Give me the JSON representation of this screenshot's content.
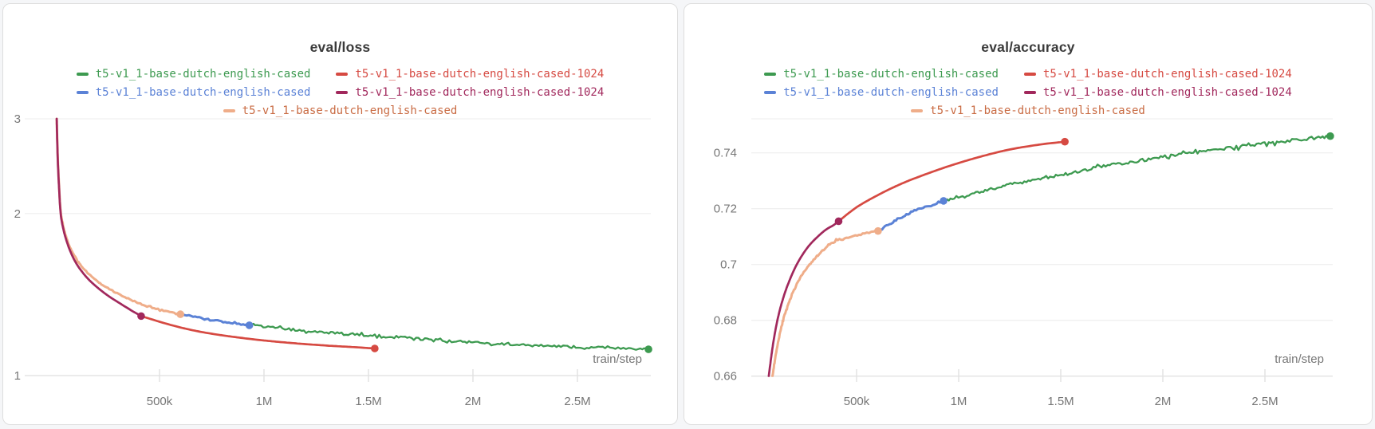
{
  "chart_data": [
    {
      "type": "line",
      "title": "eval/loss",
      "xlabel": "train/step",
      "y_scale": "log",
      "x_ticks": [
        {
          "v": 500000,
          "label": "500k"
        },
        {
          "v": 1000000,
          "label": "1M"
        },
        {
          "v": 1500000,
          "label": "1.5M"
        },
        {
          "v": 2000000,
          "label": "2M"
        },
        {
          "v": 2500000,
          "label": "2.5M"
        }
      ],
      "y_ticks": [
        {
          "v": 3,
          "label": "3"
        },
        {
          "v": 2,
          "label": "2"
        },
        {
          "v": 1,
          "label": "1"
        }
      ],
      "legend": [
        {
          "label": "t5-v1_1-base-dutch-english-cased",
          "color": "#3d9a50"
        },
        {
          "label": "t5-v1_1-base-dutch-english-cased-1024",
          "color": "#d64a42"
        },
        {
          "label": "t5-v1_1-base-dutch-english-cased",
          "color": "#5b82d6"
        },
        {
          "label": "t5-v1_1-base-dutch-english-cased-1024",
          "color": "#a1285c"
        },
        {
          "label": "t5-v1_1-base-dutch-english-cased",
          "color": "#c96b43",
          "dash_color": "#efad89"
        }
      ],
      "series": [
        {
          "name": "t5-v1_1-base-dutch-english-cased",
          "color": "#efad89",
          "width": 3,
          "jitter": 0.7,
          "end_dot": true,
          "points": [
            [
              8000,
              3.0
            ],
            [
              12000,
              2.62
            ],
            [
              18000,
              2.3
            ],
            [
              27000,
              2.02
            ],
            [
              40000,
              1.89
            ],
            [
              55000,
              1.8
            ],
            [
              75000,
              1.72
            ],
            [
              100000,
              1.65
            ],
            [
              130000,
              1.592
            ],
            [
              165000,
              1.54
            ],
            [
              210000,
              1.49
            ],
            [
              260000,
              1.448
            ],
            [
              320000,
              1.408
            ],
            [
              380000,
              1.374
            ],
            [
              440000,
              1.347
            ],
            [
              520000,
              1.32
            ],
            [
              600000,
              1.3
            ]
          ]
        },
        {
          "name": "t5-v1_1-base-dutch-english-cased-1024",
          "color": "#a1285c",
          "width": 2.7,
          "jitter": 0,
          "end_dot": true,
          "points": [
            [
              8000,
              3.0
            ],
            [
              12000,
              2.6
            ],
            [
              18000,
              2.28
            ],
            [
              27000,
              2.0
            ],
            [
              40000,
              1.87
            ],
            [
              55000,
              1.78
            ],
            [
              75000,
              1.695
            ],
            [
              100000,
              1.62
            ],
            [
              130000,
              1.558
            ],
            [
              165000,
              1.503
            ],
            [
              210000,
              1.45
            ],
            [
              260000,
              1.402
            ],
            [
              320000,
              1.355
            ],
            [
              370000,
              1.318
            ],
            [
              412000,
              1.29
            ]
          ]
        },
        {
          "name": "t5-v1_1-base-dutch-english-cased-1024",
          "color": "#d64a42",
          "width": 2.7,
          "jitter": 0,
          "end_dot": true,
          "points": [
            [
              412000,
              1.29
            ],
            [
              480000,
              1.266
            ],
            [
              560000,
              1.24
            ],
            [
              650000,
              1.216
            ],
            [
              750000,
              1.196
            ],
            [
              870000,
              1.178
            ],
            [
              1000000,
              1.162
            ],
            [
              1150000,
              1.148
            ],
            [
              1300000,
              1.137
            ],
            [
              1420000,
              1.13
            ],
            [
              1530000,
              1.123
            ]
          ]
        },
        {
          "name": "t5-v1_1-base-dutch-english-cased",
          "color": "#5b82d6",
          "width": 3,
          "jitter": 0.9,
          "end_dot": true,
          "points": [
            [
              600000,
              1.3
            ],
            [
              680000,
              1.283
            ],
            [
              760000,
              1.268
            ],
            [
              850000,
              1.253
            ],
            [
              930000,
              1.24
            ]
          ]
        },
        {
          "name": "t5-v1_1-base-dutch-english-cased",
          "color": "#3d9a50",
          "width": 2.3,
          "jitter": 1.5,
          "end_dot": true,
          "points": [
            [
              930000,
              1.24
            ],
            [
              1100000,
              1.221
            ],
            [
              1300000,
              1.202
            ],
            [
              1530000,
              1.186
            ],
            [
              1750000,
              1.17
            ],
            [
              2000000,
              1.152
            ],
            [
              2200000,
              1.141
            ],
            [
              2400000,
              1.133
            ],
            [
              2600000,
              1.126
            ],
            [
              2840000,
              1.119
            ]
          ]
        }
      ]
    },
    {
      "type": "line",
      "title": "eval/accuracy",
      "xlabel": "train/step",
      "y_scale": "linear",
      "x_ticks": [
        {
          "v": 500000,
          "label": "500k"
        },
        {
          "v": 1000000,
          "label": "1M"
        },
        {
          "v": 1500000,
          "label": "1.5M"
        },
        {
          "v": 2000000,
          "label": "2M"
        },
        {
          "v": 2500000,
          "label": "2.5M"
        }
      ],
      "y_ticks": [
        {
          "v": 0.74,
          "label": "0.74"
        },
        {
          "v": 0.72,
          "label": "0.72"
        },
        {
          "v": 0.7,
          "label": "0.7"
        },
        {
          "v": 0.68,
          "label": "0.68"
        },
        {
          "v": 0.66,
          "label": "0.66"
        }
      ],
      "legend": [
        {
          "label": "t5-v1_1-base-dutch-english-cased",
          "color": "#3d9a50"
        },
        {
          "label": "t5-v1_1-base-dutch-english-cased-1024",
          "color": "#d64a42"
        },
        {
          "label": "t5-v1_1-base-dutch-english-cased",
          "color": "#5b82d6"
        },
        {
          "label": "t5-v1_1-base-dutch-english-cased-1024",
          "color": "#a1285c"
        },
        {
          "label": "t5-v1_1-base-dutch-english-cased",
          "color": "#c96b43",
          "dash_color": "#efad89"
        }
      ],
      "series": [
        {
          "name": "t5-v1_1-base-dutch-english-cased",
          "color": "#efad89",
          "width": 3,
          "jitter": 1.0,
          "end_dot": true,
          "points": [
            [
              88000,
              0.66
            ],
            [
              105000,
              0.668
            ],
            [
              125000,
              0.6755
            ],
            [
              150000,
              0.6825
            ],
            [
              180000,
              0.6885
            ],
            [
              215000,
              0.694
            ],
            [
              255000,
              0.6985
            ],
            [
              300000,
              0.7025
            ],
            [
              350000,
              0.706
            ],
            [
              400000,
              0.7085
            ],
            [
              460000,
              0.7095
            ],
            [
              530000,
              0.711
            ],
            [
              605000,
              0.712
            ]
          ]
        },
        {
          "name": "t5-v1_1-base-dutch-english-cased-1024",
          "color": "#a1285c",
          "width": 2.7,
          "jitter": 0,
          "end_dot": true,
          "points": [
            [
              70000,
              0.66
            ],
            [
              85000,
              0.6685
            ],
            [
              100000,
              0.6755
            ],
            [
              120000,
              0.6825
            ],
            [
              145000,
              0.689
            ],
            [
              170000,
              0.694
            ],
            [
              200000,
              0.699
            ],
            [
              235000,
              0.7035
            ],
            [
              270000,
              0.707
            ],
            [
              310000,
              0.71
            ],
            [
              350000,
              0.7125
            ],
            [
              385000,
              0.714
            ],
            [
              412000,
              0.7155
            ]
          ]
        },
        {
          "name": "t5-v1_1-base-dutch-english-cased-1024",
          "color": "#d64a42",
          "width": 2.7,
          "jitter": 0,
          "end_dot": true,
          "points": [
            [
              412000,
              0.7155
            ],
            [
              500000,
              0.7205
            ],
            [
              600000,
              0.7247
            ],
            [
              700000,
              0.7283
            ],
            [
              800000,
              0.7313
            ],
            [
              950000,
              0.7352
            ],
            [
              1100000,
              0.7385
            ],
            [
              1250000,
              0.7412
            ],
            [
              1400000,
              0.743
            ],
            [
              1520000,
              0.744
            ]
          ]
        },
        {
          "name": "t5-v1_1-base-dutch-english-cased",
          "color": "#5b82d6",
          "width": 3,
          "jitter": 1.3,
          "end_dot": true,
          "points": [
            [
              605000,
              0.712
            ],
            [
              700000,
              0.7162
            ],
            [
              800000,
              0.7197
            ],
            [
              926000,
              0.7228
            ]
          ]
        },
        {
          "name": "t5-v1_1-base-dutch-english-cased",
          "color": "#3d9a50",
          "width": 2.3,
          "jitter": 1.9,
          "end_dot": true,
          "points": [
            [
              926000,
              0.7228
            ],
            [
              1050000,
              0.7252
            ],
            [
              1200000,
              0.7278
            ],
            [
              1400000,
              0.7308
            ],
            [
              1600000,
              0.7337
            ],
            [
              1800000,
              0.7362
            ],
            [
              2000000,
              0.7385
            ],
            [
              2200000,
              0.7405
            ],
            [
              2400000,
              0.7424
            ],
            [
              2600000,
              0.7442
            ],
            [
              2820000,
              0.746
            ]
          ]
        }
      ]
    }
  ]
}
